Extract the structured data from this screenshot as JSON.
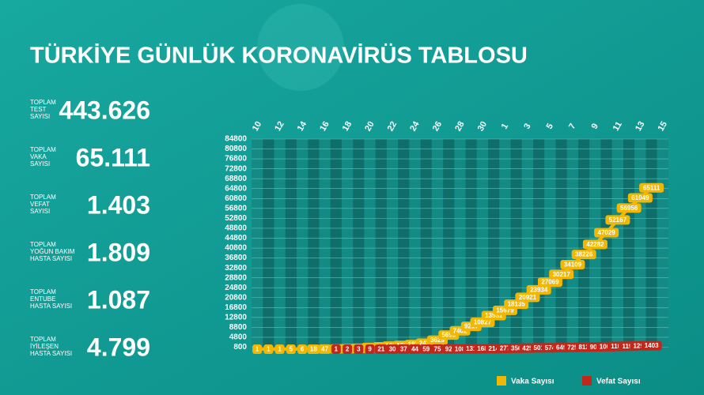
{
  "title": "TÜRKİYE GÜNLÜK KORONAVİRÜS TABLOSU",
  "stats": [
    {
      "label": [
        "TOPLAM",
        "TEST",
        "SAYISI"
      ],
      "value": "443.626"
    },
    {
      "label": [
        "TOPLAM",
        "VAKA",
        "SAYISI"
      ],
      "value": "65.111"
    },
    {
      "label": [
        "TOPLAM",
        "VEFAT",
        "SAYISI"
      ],
      "value": "1.403"
    },
    {
      "label": [
        "TOPLAM",
        "YOĞUN BAKIM",
        "HASTA SAYISI"
      ],
      "value": "1.809"
    },
    {
      "label": [
        "TOPLAM",
        "ENTUBE",
        "HASTA SAYISI"
      ],
      "value": "1.087"
    },
    {
      "label": [
        "TOPLAM",
        "İYİLEŞEN",
        "HASTA SAYISI"
      ],
      "value": "4.799"
    }
  ],
  "chart_data": {
    "type": "line",
    "categories": [
      "10",
      null,
      "12",
      null,
      "14",
      null,
      "16",
      null,
      "18",
      null,
      "20",
      null,
      "22",
      null,
      "24",
      null,
      "26",
      null,
      "28",
      null,
      "30",
      null,
      "1",
      null,
      "3",
      null,
      "5",
      null,
      "7",
      null,
      "9",
      null,
      "11",
      null,
      "13",
      null,
      "15"
    ],
    "series": [
      {
        "name": "Vaka Sayısı",
        "color": "#f2b705",
        "values": [
          1,
          1,
          1,
          5,
          6,
          18,
          47,
          98,
          191,
          359,
          670,
          947,
          1236,
          1529,
          1872,
          2433,
          3629,
          5698,
          7402,
          9217,
          10827,
          13531,
          15679,
          18135,
          20921,
          23934,
          27069,
          30217,
          34109,
          38226,
          42282,
          47029,
          52167,
          56956,
          61049,
          65111,
          null
        ]
      },
      {
        "name": "Vefat Sayısı",
        "color": "#c0281b",
        "values": [
          null,
          null,
          null,
          null,
          null,
          null,
          null,
          1,
          2,
          3,
          9,
          21,
          30,
          37,
          44,
          59,
          75,
          92,
          108,
          131,
          168,
          214,
          277,
          356,
          425,
          501,
          574,
          649,
          725,
          812,
          908,
          1006,
          1101,
          1198,
          1296,
          1403,
          null
        ]
      }
    ],
    "ylim": [
      0,
      84800
    ],
    "yticks": [
      800,
      4800,
      8800,
      12800,
      16800,
      20800,
      24800,
      28800,
      32800,
      36800,
      40800,
      44800,
      48800,
      52800,
      56800,
      60800,
      64800,
      68800,
      72800,
      76800,
      80800,
      84800
    ],
    "grid": true
  }
}
